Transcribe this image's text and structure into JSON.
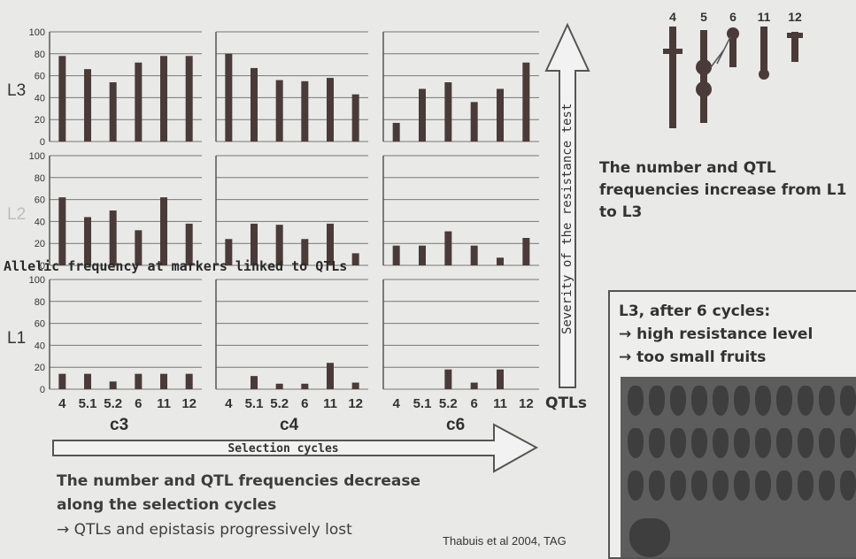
{
  "chart_data": {
    "type": "bar",
    "categories": [
      "4",
      "5.1",
      "5.2",
      "6",
      "11",
      "12"
    ],
    "ylim": [
      0,
      100
    ],
    "yticks": [
      0,
      20,
      40,
      60,
      80,
      100
    ],
    "cycles": [
      "c3",
      "c4",
      "c6"
    ],
    "rows": [
      {
        "line": "L3",
        "panels": [
          {
            "cycle": "c3",
            "values": [
              78,
              66,
              54,
              72,
              78,
              78
            ]
          },
          {
            "cycle": "c4",
            "values": [
              80,
              67,
              56,
              55,
              58,
              43
            ]
          },
          {
            "cycle": "c6",
            "values": [
              17,
              48,
              54,
              36,
              48,
              72
            ]
          }
        ]
      },
      {
        "line": "L2",
        "panels": [
          {
            "cycle": "c3",
            "values": [
              62,
              44,
              50,
              32,
              62,
              38
            ]
          },
          {
            "cycle": "c4",
            "values": [
              24,
              38,
              37,
              24,
              38,
              11
            ]
          },
          {
            "cycle": "c6",
            "values": [
              18,
              18,
              31,
              18,
              7,
              25
            ]
          }
        ]
      },
      {
        "line": "L1",
        "panels": [
          {
            "cycle": "c3",
            "values": [
              14,
              14,
              7,
              14,
              14,
              14
            ]
          },
          {
            "cycle": "c4",
            "values": [
              0,
              12,
              5,
              5,
              24,
              6
            ]
          },
          {
            "cycle": "c6",
            "values": [
              0,
              0,
              18,
              6,
              18,
              0
            ]
          }
        ]
      }
    ],
    "grid": true,
    "overlay_label": "Allelic frequency at markers linked to QTLs",
    "xlabel": "QTLs",
    "x_arrow_label": "Selection cycles",
    "y_arrow_label": "Severity of the resistance test"
  },
  "chromosomes": [
    "4",
    "5",
    "6",
    "11",
    "12"
  ],
  "statement_right": "The number and QTL frequencies increase from L1 to L3",
  "box": {
    "title": "L3, after 6 cycles:",
    "point1": "→ high resistance level",
    "point2": "→ too small fruits"
  },
  "bottom_text": {
    "line1": "The number and QTL frequencies decrease",
    "line2": "along the selection cycles",
    "line3": "→ QTLs and epistasis progressively lost"
  },
  "citation": "Thabuis et al 2004, TAG",
  "colors": {
    "bar": "#4a3b38",
    "text": "#333333",
    "arrow_fill": "#f2f2f2"
  }
}
